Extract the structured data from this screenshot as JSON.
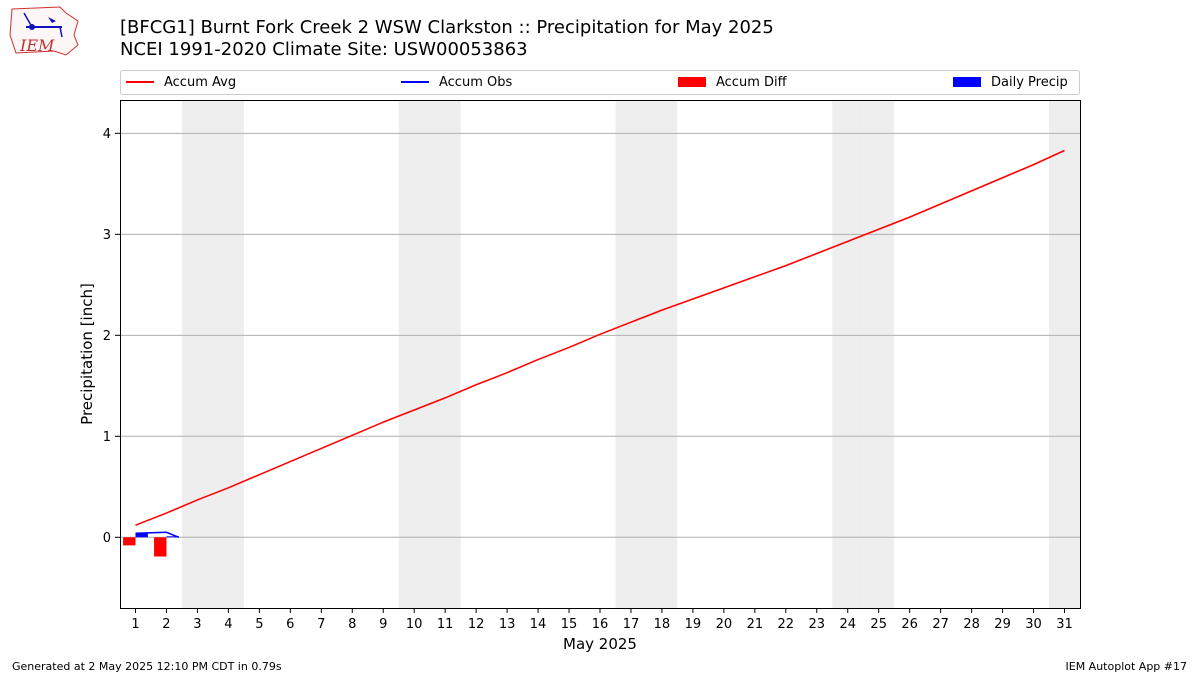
{
  "title_line1": "[BFCG1] Burnt Fork Creek 2 WSW Clarkston :: Precipitation for May 2025",
  "title_line2": "NCEI 1991-2020 Climate Site: USW00053863",
  "logo_text": "IEM",
  "footer_left": "Generated at 2 May 2025 12:10 PM CDT in 0.79s",
  "footer_right": "IEM Autoplot App #17",
  "colors": {
    "accum_avg": "#ff0000",
    "accum_obs": "#0000ff",
    "accum_diff": "#ff0000",
    "daily_precip": "#0000ff",
    "weekend_shade": "#eeeeee",
    "grid": "#b0b0b0"
  },
  "chart_data": {
    "type": "line",
    "xlabel": "May 2025",
    "ylabel": "Precipitation [inch]",
    "xlim": [
      0.5,
      31.5
    ],
    "ylim": [
      -0.7,
      4.33
    ],
    "x_ticks": [
      1,
      2,
      3,
      4,
      5,
      6,
      7,
      8,
      9,
      10,
      11,
      12,
      13,
      14,
      15,
      16,
      17,
      18,
      19,
      20,
      21,
      22,
      23,
      24,
      25,
      26,
      27,
      28,
      29,
      30,
      31
    ],
    "y_ticks": [
      0,
      1,
      2,
      3,
      4
    ],
    "grid": "y",
    "legend": {
      "placement": "top",
      "entries": [
        {
          "label": "Accum Avg",
          "kind": "line",
          "color": "#ff0000"
        },
        {
          "label": "Accum Obs",
          "kind": "line",
          "color": "#0000ff"
        },
        {
          "label": "Accum Diff",
          "kind": "bar",
          "color": "#ff0000"
        },
        {
          "label": "Daily Precip",
          "kind": "bar",
          "color": "#0000ff"
        }
      ]
    },
    "weekend_days": [
      3,
      4,
      10,
      11,
      17,
      18,
      24,
      25,
      31
    ],
    "series": [
      {
        "name": "Accum Avg",
        "type": "line",
        "x": [
          1,
          2,
          3,
          4,
          5,
          6,
          7,
          8,
          9,
          10,
          11,
          12,
          13,
          14,
          15,
          16,
          17,
          18,
          19,
          20,
          21,
          22,
          23,
          24,
          25,
          26,
          27,
          28,
          29,
          30,
          31
        ],
        "values": [
          0.12,
          0.24,
          0.37,
          0.49,
          0.62,
          0.75,
          0.88,
          1.01,
          1.14,
          1.26,
          1.38,
          1.51,
          1.63,
          1.76,
          1.88,
          2.01,
          2.13,
          2.25,
          2.36,
          2.47,
          2.58,
          2.69,
          2.81,
          2.93,
          3.05,
          3.17,
          3.3,
          3.43,
          3.56,
          3.69,
          3.83
        ]
      },
      {
        "name": "Accum Obs",
        "type": "line",
        "x": [
          1,
          2
        ],
        "values": [
          0.04,
          0.05
        ]
      },
      {
        "name": "Accum Diff",
        "type": "bar",
        "x": [
          1,
          2
        ],
        "values": [
          -0.08,
          -0.19
        ]
      },
      {
        "name": "Daily Precip",
        "type": "bar",
        "x": [
          1,
          2
        ],
        "values": [
          0.04,
          0.01
        ]
      }
    ]
  }
}
